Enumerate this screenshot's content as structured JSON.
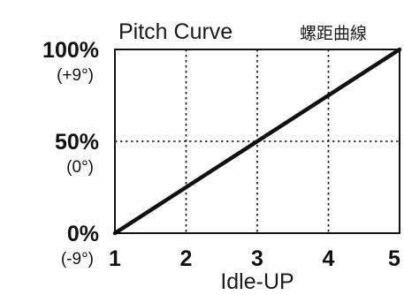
{
  "colors": {
    "background": "#ffffff",
    "axis": "#111111",
    "grid": "#111111",
    "curve": "#111111"
  },
  "chart_data": {
    "type": "line",
    "title": "Pitch Curve",
    "title_secondary": "螺距曲線",
    "xlabel": "Idle-UP",
    "x": [
      1,
      2,
      3,
      4,
      5
    ],
    "xlim": [
      1,
      5
    ],
    "x_ticks": [
      "1",
      "2",
      "3",
      "4",
      "5"
    ],
    "ylim": [
      0,
      100
    ],
    "y_ticks": [
      {
        "value": 100,
        "label": "100%",
        "sublabel": "(+9°)"
      },
      {
        "value": 50,
        "label": "50%",
        "sublabel": "(0°)"
      },
      {
        "value": 0,
        "label": "0%",
        "sublabel": "(-9°)"
      }
    ],
    "grid": true,
    "grid_style": "dotted",
    "series": [
      {
        "values": [
          0,
          25,
          50,
          75,
          100
        ]
      }
    ]
  }
}
